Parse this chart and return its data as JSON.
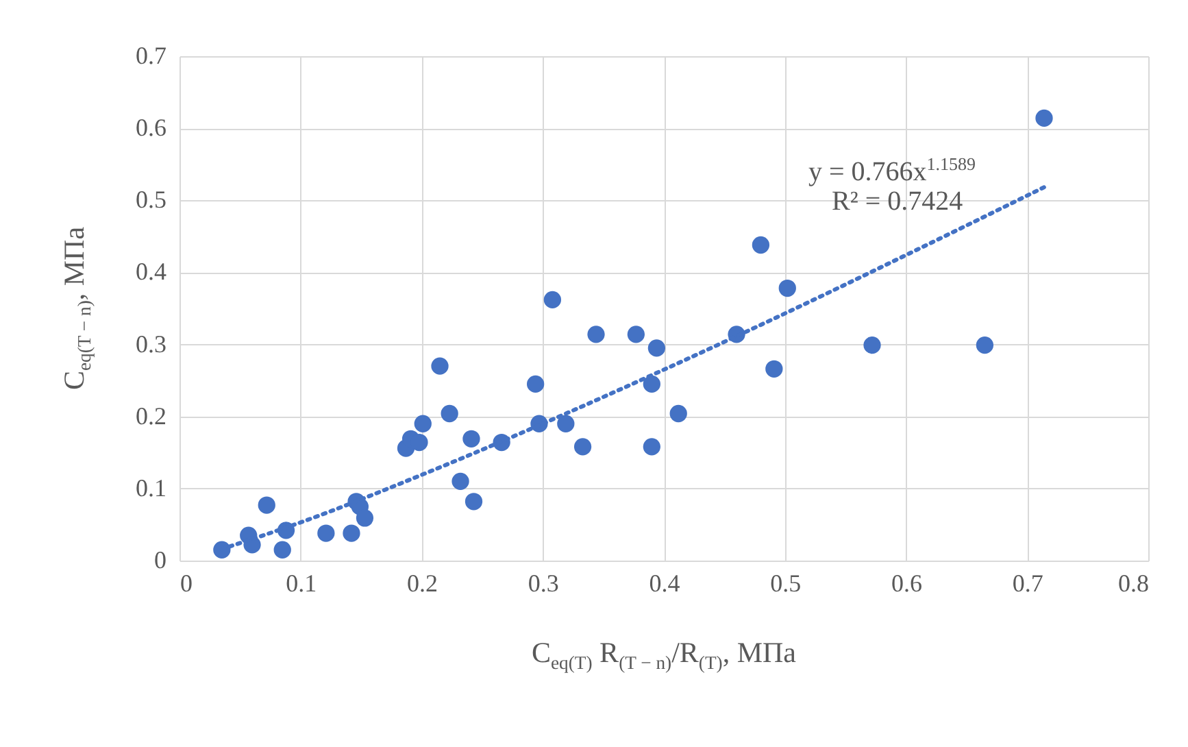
{
  "chart_data": {
    "type": "scatter",
    "xlabel": "C$_{eq(T)}$ R$_{(T − n)}$/R$_{(T)}$, МПа",
    "ylabel": "C$_{eq(T − n)}$, МПа",
    "annotations": [
      "y = 0.766x$^{1.1589}$",
      "R² = 0.7424"
    ],
    "xlim": [
      0,
      0.8
    ],
    "xticks": [
      0,
      0.1,
      0.2,
      0.3,
      0.4,
      0.5,
      0.6,
      0.7,
      0.8
    ],
    "ylim": [
      0,
      0.7
    ],
    "yticks": [
      0,
      0.1,
      0.2,
      0.3,
      0.4,
      0.5,
      0.6,
      0.7
    ],
    "grid": true,
    "marker": "circle",
    "series": [
      {
        "color": "#4472c4",
        "x": [
          0.035,
          0.057,
          0.06,
          0.072,
          0.085,
          0.088,
          0.121,
          0.142,
          0.146,
          0.149,
          0.153,
          0.187,
          0.191,
          0.198,
          0.201,
          0.215,
          0.223,
          0.232,
          0.241,
          0.243,
          0.266,
          0.294,
          0.297,
          0.308,
          0.319,
          0.333,
          0.344,
          0.377,
          0.394,
          0.39,
          0.39,
          0.412,
          0.46,
          0.48,
          0.491,
          0.502,
          0.572,
          0.665,
          0.714
        ],
        "values": [
          0.015,
          0.035,
          0.022,
          0.077,
          0.015,
          0.042,
          0.038,
          0.038,
          0.082,
          0.075,
          0.059,
          0.156,
          0.169,
          0.164,
          0.19,
          0.27,
          0.204,
          0.11,
          0.169,
          0.082,
          0.164,
          0.245,
          0.19,
          0.362,
          0.19,
          0.158,
          0.314,
          0.314,
          0.295,
          0.245,
          0.158,
          0.204,
          0.314,
          0.438,
          0.266,
          0.378,
          0.299,
          0.299,
          0.614
        ]
      },
      {
        "type": "line",
        "color": "#4472c4",
        "line_style": "dotted",
        "marker": "none",
        "x": [
          0.035,
          0.1,
          0.2,
          0.3,
          0.4,
          0.5,
          0.6,
          0.715
        ],
        "values": [
          0.016,
          0.053,
          0.119,
          0.19,
          0.265,
          0.343,
          0.424,
          0.519
        ]
      }
    ]
  }
}
